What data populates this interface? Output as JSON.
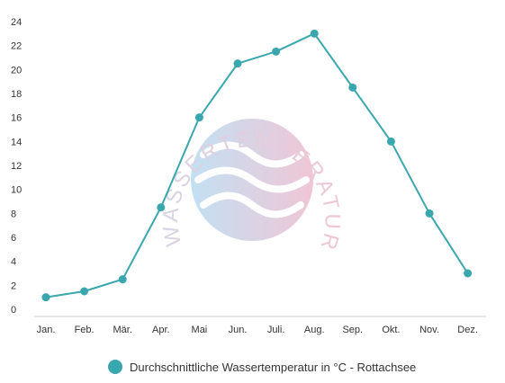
{
  "watermark": {
    "text": "WASSERTEMPERATUR.ORG"
  },
  "chart_data": {
    "type": "line",
    "categories": [
      "Jan.",
      "Feb.",
      "Mär.",
      "Apr.",
      "Mai",
      "Jun.",
      "Juli.",
      "Aug.",
      "Sep.",
      "Okt.",
      "Nov.",
      "Dez."
    ],
    "series": [
      {
        "name": "Durchschnittliche Wassertemperatur in °C - Rottachsee",
        "values": [
          1,
          1.5,
          2.5,
          8.5,
          16,
          20.5,
          21.5,
          23,
          18.5,
          14,
          8,
          3
        ],
        "color": "#3aa6ad"
      }
    ],
    "yticks": [
      "0",
      "2",
      "4",
      "6",
      "8",
      "10",
      "12",
      "14",
      "16",
      "18",
      "20",
      "22",
      "24"
    ],
    "ylim": [
      0,
      24
    ],
    "grid": false,
    "legend_position": "bottom-center"
  },
  "legend": {
    "label": "Durchschnittliche Wassertemperatur in °C - Rottachsee",
    "color": "#3aa6ad"
  }
}
